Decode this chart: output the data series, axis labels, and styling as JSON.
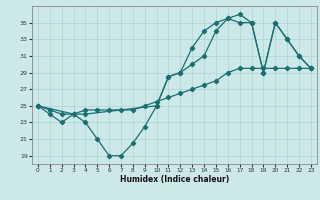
{
  "xlabel": "Humidex (Indice chaleur)",
  "bg_color": "#cce8e8",
  "line_color": "#1a7070",
  "grid_color": "#aad4d4",
  "line1_x": [
    0,
    1,
    2,
    3,
    4,
    5,
    6,
    7,
    8,
    9,
    10,
    11,
    12,
    13,
    14,
    15,
    16,
    17,
    18,
    19,
    20,
    21,
    22,
    23
  ],
  "line1_y": [
    25,
    24,
    23,
    24,
    23,
    21,
    19,
    19,
    20.5,
    22.5,
    25,
    28.5,
    29,
    32,
    34,
    35,
    35.5,
    35,
    35,
    29,
    35,
    33,
    31,
    29.5
  ],
  "line2_x": [
    0,
    1,
    2,
    3,
    4,
    5,
    6,
    7,
    8,
    9,
    10,
    11,
    12,
    13,
    14,
    15,
    16,
    17,
    18,
    19,
    20,
    21,
    22,
    23
  ],
  "line2_y": [
    25,
    24.5,
    24,
    24,
    24.5,
    24.5,
    24.5,
    24.5,
    24.5,
    25,
    25.5,
    26,
    26.5,
    27,
    27.5,
    28,
    29,
    29.5,
    29.5,
    29.5,
    29.5,
    29.5,
    29.5,
    29.5
  ],
  "line3_x": [
    0,
    3,
    4,
    10,
    11,
    12,
    13,
    14,
    15,
    16,
    17,
    18,
    19,
    20,
    21,
    22,
    23
  ],
  "line3_y": [
    25,
    24,
    24,
    25,
    28.5,
    29,
    30,
    31,
    34,
    35.5,
    36,
    35,
    29,
    35,
    33,
    31,
    29.5
  ],
  "xlim": [
    -0.5,
    23.5
  ],
  "ylim": [
    18,
    37
  ],
  "yticks": [
    19,
    21,
    23,
    25,
    27,
    29,
    31,
    33,
    35
  ],
  "xticks": [
    0,
    1,
    2,
    3,
    4,
    5,
    6,
    7,
    8,
    9,
    10,
    11,
    12,
    13,
    14,
    15,
    16,
    17,
    18,
    19,
    20,
    21,
    22,
    23
  ]
}
